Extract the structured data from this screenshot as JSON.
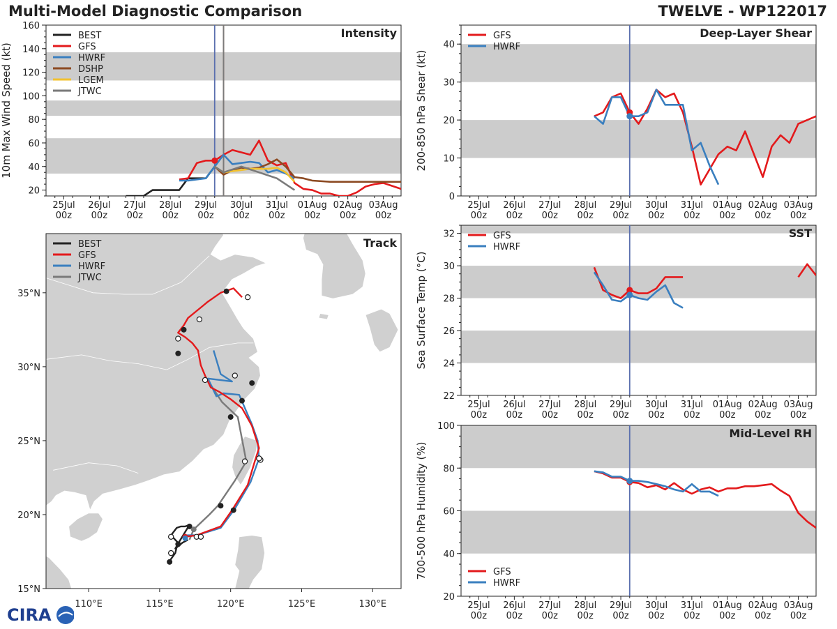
{
  "header": {
    "title_left": "Multi-Model Diagnostic Comparison",
    "title_right": "TWELVE - WP122017"
  },
  "logo_text": "CIRA",
  "time_ticks": [
    "25Jul",
    "26Jul",
    "27Jul",
    "28Jul",
    "29Jul",
    "30Jul",
    "31Jul",
    "01Aug",
    "02Aug",
    "03Aug"
  ],
  "time_hour": "00z",
  "colors": {
    "BEST": "#222222",
    "GFS": "#e31a1c",
    "HWRF": "#3a7fbf",
    "DSHP": "#8c4a22",
    "LGEM": "#f2c12e",
    "JTWC": "#7a7a7a",
    "band": "#cccccc",
    "vline": "#5a6fae",
    "land": "#d0d0d0"
  },
  "chart_data": [
    {
      "id": "intensity",
      "type": "line",
      "title": "Intensity",
      "ylabel": "10m Max Wind Speed (kt)",
      "xlim": [
        -0.5,
        9.5
      ],
      "ylim": [
        15,
        160
      ],
      "yticks": [
        20,
        40,
        60,
        80,
        100,
        120,
        140,
        160
      ],
      "bands": [
        [
          34,
          64
        ],
        [
          83,
          96
        ],
        [
          113,
          137
        ]
      ],
      "vlines": [
        {
          "x": 4.25,
          "color": "vline"
        },
        {
          "x": 4.5,
          "color": "DSHP"
        },
        {
          "x": 4.5,
          "color": "JTWC"
        }
      ],
      "legend": [
        "BEST",
        "GFS",
        "HWRF",
        "DSHP",
        "LGEM",
        "JTWC"
      ],
      "series": [
        {
          "name": "BEST",
          "x": [
            1.75,
            2,
            2.25,
            2.5,
            2.75,
            3,
            3.25,
            3.5,
            3.75,
            4,
            4.25
          ],
          "y": [
            15,
            15,
            15,
            20,
            20,
            20,
            20,
            30,
            30,
            30,
            40
          ]
        },
        {
          "name": "GFS",
          "x": [
            3.25,
            3.5,
            3.75,
            4,
            4.25,
            4.5,
            4.75,
            5,
            5.25,
            5.5,
            5.75,
            6,
            6.25,
            6.5,
            6.75,
            7,
            7.25,
            7.5,
            7.75,
            8,
            8.25,
            8.5,
            8.75,
            9,
            9.5
          ],
          "y": [
            29,
            30,
            43,
            45,
            45,
            50,
            54,
            52,
            50,
            62,
            45,
            41,
            43,
            26,
            21,
            20,
            17,
            17,
            15,
            15,
            18,
            23,
            25,
            26,
            21
          ]
        },
        {
          "name": "HWRF",
          "x": [
            3.25,
            3.5,
            3.75,
            4,
            4.25,
            4.5,
            4.75,
            5,
            5.25,
            5.5,
            5.75,
            6,
            6.25,
            6.5
          ],
          "y": [
            28,
            28,
            29,
            30,
            40,
            50,
            42,
            43,
            44,
            43,
            35,
            37,
            34,
            30
          ]
        },
        {
          "name": "DSHP",
          "x": [
            4.25,
            4.5,
            4.75,
            5,
            5.25,
            5.5,
            5.75,
            6,
            6.25,
            6.5,
            6.75,
            7,
            7.5,
            8,
            8.5,
            9,
            9.5
          ],
          "y": [
            40,
            33,
            37,
            39,
            38,
            39,
            42,
            46,
            40,
            31,
            30,
            28,
            27,
            27,
            27,
            27,
            27
          ]
        },
        {
          "name": "LGEM",
          "x": [
            4.25,
            4.5,
            4.75,
            5,
            5.25,
            5.5,
            5.75,
            6,
            6.25,
            6.5
          ],
          "y": [
            40,
            35,
            36,
            37,
            38,
            38,
            38,
            39,
            35,
            27
          ]
        },
        {
          "name": "JTWC",
          "x": [
            4.25,
            4.5,
            5,
            5.5,
            6,
            6.5
          ],
          "y": [
            40,
            35,
            40,
            35,
            30,
            20
          ]
        }
      ],
      "markers": [
        {
          "x": 4.25,
          "y": 45,
          "color": "GFS"
        }
      ]
    },
    {
      "id": "shear",
      "type": "line",
      "title": "Deep-Layer Shear",
      "ylabel": "200-850 hPa Shear (kt)",
      "xlim": [
        -0.5,
        9.5
      ],
      "ylim": [
        0,
        45
      ],
      "yticks": [
        0,
        10,
        20,
        30,
        40
      ],
      "bands": [
        [
          10,
          20
        ],
        [
          30,
          40
        ]
      ],
      "vlines": [
        {
          "x": 4.25,
          "color": "vline"
        }
      ],
      "legend": [
        "GFS",
        "HWRF"
      ],
      "series": [
        {
          "name": "GFS",
          "x": [
            3.25,
            3.5,
            3.75,
            4,
            4.25,
            4.5,
            4.75,
            5,
            5.25,
            5.5,
            5.75,
            6,
            6.25,
            6.5,
            6.75,
            7,
            7.25,
            7.5,
            7.75,
            8,
            8.25,
            8.5,
            8.75,
            9,
            9.5
          ],
          "y": [
            21,
            22,
            26,
            27,
            22,
            19,
            23,
            28,
            26,
            27,
            22,
            13,
            3,
            7,
            11,
            13,
            12,
            17,
            11,
            5,
            13,
            16,
            14,
            19,
            21
          ]
        },
        {
          "name": "HWRF",
          "x": [
            3.25,
            3.5,
            3.75,
            4,
            4.25,
            4.5,
            4.75,
            5,
            5.25,
            5.5,
            5.75,
            6,
            6.25,
            6.5,
            6.75
          ],
          "y": [
            21,
            19,
            26,
            26,
            21,
            21,
            22,
            28,
            24,
            24,
            24,
            12,
            14,
            8,
            3
          ]
        }
      ],
      "markers": [
        {
          "x": 4.25,
          "y": 22,
          "color": "GFS"
        },
        {
          "x": 4.25,
          "y": 21,
          "color": "HWRF"
        }
      ]
    },
    {
      "id": "sst",
      "type": "line",
      "title": "SST",
      "ylabel": "Sea Surface Temp (°C)",
      "xlim": [
        -0.5,
        9.5
      ],
      "ylim": [
        22,
        32.5
      ],
      "yticks": [
        22,
        24,
        26,
        28,
        30,
        32
      ],
      "bands": [
        [
          24,
          26
        ],
        [
          28,
          30
        ],
        [
          32,
          32.5
        ]
      ],
      "vlines": [
        {
          "x": 4.25,
          "color": "vline"
        }
      ],
      "legend": [
        "GFS",
        "HWRF"
      ],
      "series": [
        {
          "name": "GFS",
          "x": [
            3.25,
            3.5,
            3.75,
            4,
            4.25,
            4.5,
            4.75,
            5,
            5.25,
            5.5,
            5.75
          ],
          "y": [
            29.9,
            28.5,
            28.2,
            28.0,
            28.5,
            28.3,
            28.3,
            28.6,
            29.3,
            29.3,
            29.3
          ]
        },
        {
          "name": "GFS",
          "x": [
            9,
            9.25,
            9.5
          ],
          "y": [
            29.3,
            30.1,
            29.4
          ]
        },
        {
          "name": "HWRF",
          "x": [
            3.25,
            3.5,
            3.75,
            4,
            4.25,
            4.5,
            4.75,
            5,
            5.25,
            5.5,
            5.75
          ],
          "y": [
            29.6,
            28.8,
            27.9,
            27.8,
            28.2,
            28.0,
            27.9,
            28.4,
            28.8,
            27.7,
            27.4
          ]
        }
      ],
      "markers": [
        {
          "x": 4.25,
          "y": 28.5,
          "color": "GFS"
        },
        {
          "x": 4.25,
          "y": 28.2,
          "color": "HWRF"
        }
      ]
    },
    {
      "id": "rh",
      "type": "line",
      "title": "Mid-Level RH",
      "ylabel": "700-500 hPa Humidity (%)",
      "xlim": [
        -0.5,
        9.5
      ],
      "ylim": [
        20,
        100
      ],
      "yticks": [
        20,
        40,
        60,
        80,
        100
      ],
      "bands": [
        [
          40,
          60
        ],
        [
          80,
          100
        ]
      ],
      "vlines": [
        {
          "x": 4.25,
          "color": "vline"
        }
      ],
      "legend": [
        "GFS",
        "HWRF"
      ],
      "legend_pos": "bottom-left",
      "series": [
        {
          "name": "GFS",
          "x": [
            3.25,
            3.5,
            3.75,
            4,
            4.25,
            4.5,
            4.75,
            5,
            5.25,
            5.5,
            5.75,
            6,
            6.25,
            6.5,
            6.75,
            7,
            7.25,
            7.5,
            7.75,
            8,
            8.25,
            8.5,
            8.75,
            9,
            9.25,
            9.5
          ],
          "y": [
            78.5,
            77.5,
            75.5,
            75.5,
            73.5,
            73,
            71,
            72,
            70,
            73,
            70,
            68,
            70,
            71,
            69,
            70.5,
            70.5,
            71.5,
            71.5,
            72,
            72.5,
            69.5,
            67,
            59,
            55,
            52
          ]
        },
        {
          "name": "HWRF",
          "x": [
            3.25,
            3.5,
            3.75,
            4,
            4.25,
            4.5,
            4.75,
            5,
            5.25,
            5.5,
            5.75,
            6,
            6.25,
            6.5,
            6.75
          ],
          "y": [
            78.5,
            78,
            76,
            76,
            74,
            74,
            73.5,
            72.5,
            71.5,
            70,
            69,
            72.5,
            69,
            69,
            67
          ]
        }
      ],
      "markers": [
        {
          "x": 4.25,
          "y": 73.5,
          "color": "GFS"
        },
        {
          "x": 4.25,
          "y": 74,
          "color": "HWRF"
        }
      ]
    },
    {
      "id": "track",
      "type": "scatter",
      "title": "Track",
      "xlim": [
        107,
        132
      ],
      "ylim": [
        15,
        39
      ],
      "xticks": [
        110,
        115,
        120,
        125,
        130
      ],
      "xtick_labels": [
        "110°E",
        "115°E",
        "120°E",
        "125°E",
        "130°E"
      ],
      "yticks": [
        15,
        20,
        25,
        30,
        35
      ],
      "ytick_labels": [
        "15°N",
        "20°N",
        "25°N",
        "30°N",
        "35°N"
      ],
      "legend": [
        "BEST",
        "GFS",
        "HWRF",
        "JTWC"
      ],
      "series": [
        {
          "name": "BEST",
          "lon": [
            115.6,
            115.8,
            116.1,
            116.2,
            116.3,
            116.0,
            115.8,
            116.2,
            116.5,
            116.8,
            117.1,
            116.4,
            116.1,
            116.6,
            117.0
          ],
          "lat": [
            16.7,
            17.0,
            17.4,
            17.8,
            18.1,
            18.4,
            18.6,
            19.1,
            19.2,
            19.2,
            19.3,
            18.2,
            17.7,
            18.1,
            18.3
          ]
        },
        {
          "name": "GFS",
          "lon": [
            116.8,
            117.6,
            119.3,
            120.1,
            121.2,
            121.7,
            122.0,
            121.5,
            120.8,
            120.0,
            119.2,
            118.6,
            118.2,
            117.9,
            117.7,
            117.3,
            116.8,
            116.3,
            116.7,
            117.0,
            117.9,
            118.4,
            119.3,
            120.2,
            120.8
          ],
          "lat": [
            18.5,
            18.6,
            19.2,
            20.3,
            22.0,
            23.6,
            24.5,
            26.0,
            27.2,
            27.8,
            28.3,
            28.6,
            29.4,
            30.1,
            31.1,
            31.6,
            32.0,
            32.3,
            32.8,
            33.3,
            34.0,
            34.4,
            35.0,
            35.3,
            34.7
          ]
        },
        {
          "name": "HWRF",
          "lon": [
            116.9,
            117.6,
            119.3,
            120.3,
            121.4,
            122.0,
            121.9,
            121.5,
            120.6,
            119.5,
            119.0,
            118.4,
            120.1,
            119.3,
            118.8
          ],
          "lat": [
            18.6,
            18.6,
            19.1,
            20.4,
            22.2,
            23.8,
            25.0,
            26.1,
            28.1,
            28.2,
            28.0,
            29.2,
            29.0,
            29.5,
            31.1
          ]
        },
        {
          "name": "JTWC",
          "lon": [
            117.1,
            117.4,
            118.5,
            119.1,
            120.3,
            121.1,
            120.5,
            119.4,
            118.3
          ],
          "lat": [
            18.3,
            19.0,
            20.0,
            20.6,
            22.3,
            23.6,
            26.6,
            27.6,
            29.2
          ]
        }
      ],
      "filled_points": [
        {
          "lon": 115.7,
          "lat": 16.8,
          "color": "BEST"
        },
        {
          "lon": 116.3,
          "lat": 18.0,
          "color": "BEST"
        },
        {
          "lon": 117.1,
          "lat": 19.2,
          "color": "BEST"
        },
        {
          "lon": 117.4,
          "lat": 19.0,
          "color": "JTWC"
        },
        {
          "lon": 116.8,
          "lat": 18.5,
          "color": "GFS"
        },
        {
          "lon": 116.8,
          "lat": 18.4,
          "color": "HWRF"
        },
        {
          "lon": 119.3,
          "lat": 20.6,
          "color": "BEST"
        },
        {
          "lon": 120.2,
          "lat": 20.3,
          "color": "BEST"
        },
        {
          "lon": 120.0,
          "lat": 26.6,
          "color": "BEST"
        },
        {
          "lon": 120.8,
          "lat": 27.7,
          "color": "BEST"
        },
        {
          "lon": 121.5,
          "lat": 28.9,
          "color": "BEST"
        },
        {
          "lon": 116.3,
          "lat": 30.9,
          "color": "BEST"
        },
        {
          "lon": 116.7,
          "lat": 32.5,
          "color": "BEST"
        },
        {
          "lon": 119.7,
          "lat": 35.1,
          "color": "BEST"
        }
      ],
      "open_points": [
        {
          "lon": 115.8,
          "lat": 17.4
        },
        {
          "lon": 115.8,
          "lat": 18.5
        },
        {
          "lon": 117.6,
          "lat": 18.5
        },
        {
          "lon": 117.9,
          "lat": 18.5
        },
        {
          "lon": 121.0,
          "lat": 23.6
        },
        {
          "lon": 122.1,
          "lat": 23.7
        },
        {
          "lon": 122.0,
          "lat": 23.8
        },
        {
          "lon": 118.2,
          "lat": 29.1
        },
        {
          "lon": 120.3,
          "lat": 29.4
        },
        {
          "lon": 116.3,
          "lat": 31.9
        },
        {
          "lon": 117.8,
          "lat": 33.2
        },
        {
          "lon": 121.2,
          "lat": 34.7
        }
      ]
    }
  ]
}
